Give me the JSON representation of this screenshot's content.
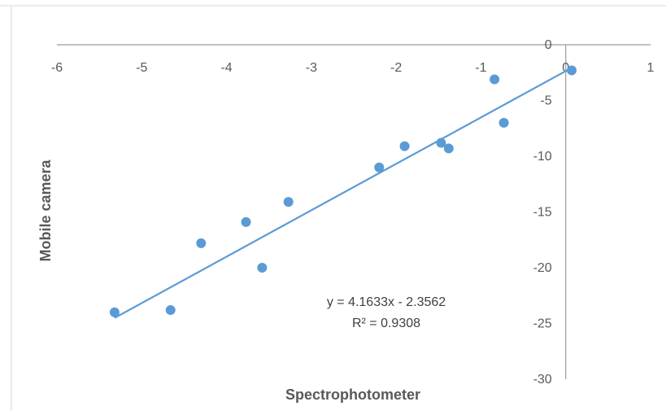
{
  "chart_data": {
    "type": "scatter",
    "xlabel": "Spectrophotometer",
    "ylabel": "Mobile camera",
    "xlim": [
      -6,
      1
    ],
    "ylim": [
      -30,
      0
    ],
    "xticks": [
      "-6",
      "-5",
      "-4",
      "-3",
      "-2",
      "-1",
      "0",
      "1"
    ],
    "yticks": [
      "0",
      "-5",
      "-10",
      "-15",
      "-20",
      "-25",
      "-30"
    ],
    "grid": false,
    "series": [
      {
        "color": "#5b9bd5",
        "points": [
          {
            "x": -5.32,
            "y": -24.0
          },
          {
            "x": -4.66,
            "y": -23.8
          },
          {
            "x": -4.3,
            "y": -17.8
          },
          {
            "x": -3.77,
            "y": -15.9
          },
          {
            "x": -3.58,
            "y": -20.0
          },
          {
            "x": -3.27,
            "y": -14.1
          },
          {
            "x": -2.2,
            "y": -11.0
          },
          {
            "x": -1.9,
            "y": -9.1
          },
          {
            "x": -1.47,
            "y": -8.8
          },
          {
            "x": -1.38,
            "y": -9.3
          },
          {
            "x": -0.84,
            "y": -3.1
          },
          {
            "x": -0.73,
            "y": -7.0
          },
          {
            "x": 0.07,
            "y": -2.3
          }
        ]
      }
    ],
    "trendline": {
      "type": "linear",
      "slope": 4.1633,
      "intercept": -2.3562,
      "x_range": [
        -5.32,
        0.07
      ],
      "color": "#5b9bd5"
    },
    "annotations": {
      "equation": "y = 4.1633x - 2.3562",
      "r_squared": "R² = 0.9308"
    }
  }
}
